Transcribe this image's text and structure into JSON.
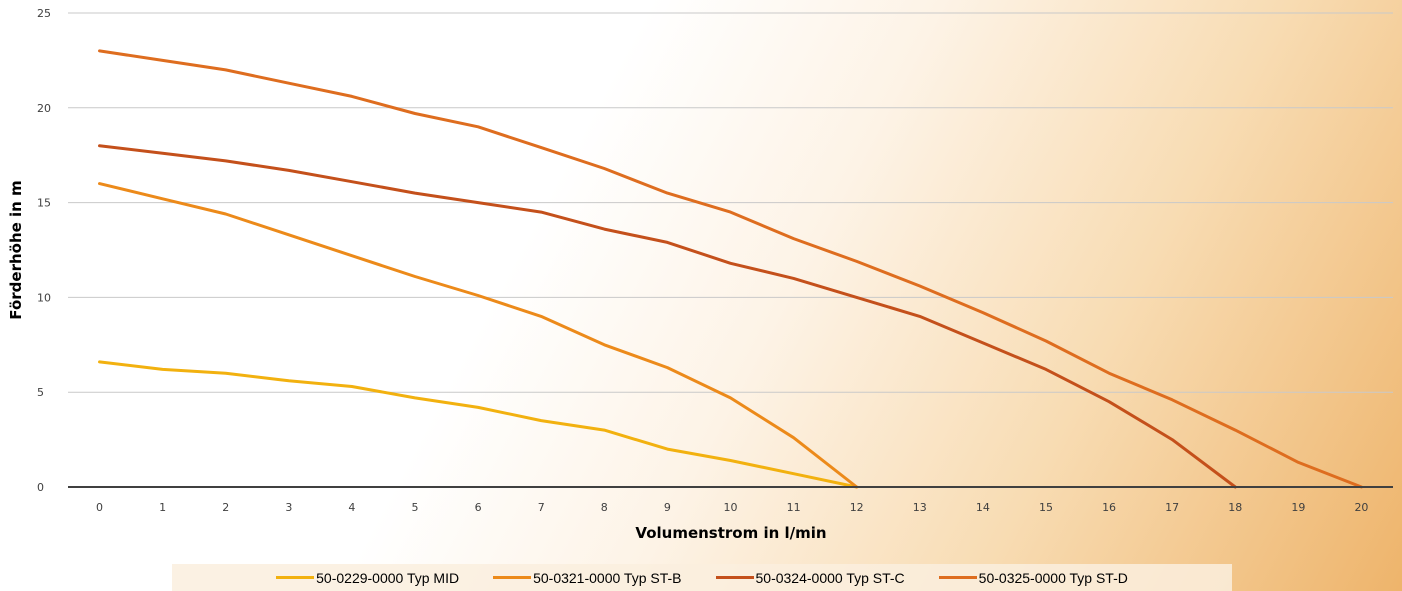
{
  "chart_data": {
    "type": "line",
    "xlabel": "Volumenstrom in l/min",
    "ylabel": "Förderhöhe in m",
    "x": [
      0,
      1,
      2,
      3,
      4,
      5,
      6,
      7,
      8,
      9,
      10,
      11,
      12,
      13,
      14,
      15,
      16,
      17,
      18,
      19,
      20
    ],
    "ylim": [
      0,
      25
    ],
    "yticks": [
      0,
      5,
      10,
      15,
      20,
      25
    ],
    "grid": "horizontal",
    "legend_position": "bottom",
    "series": [
      {
        "name": "50-0229-0000 Typ MID",
        "color": "#f2b10f",
        "values": [
          6.6,
          6.2,
          6.0,
          5.6,
          5.3,
          4.7,
          4.2,
          3.5,
          3.0,
          2.0,
          1.4,
          0.7,
          0.0,
          null,
          null,
          null,
          null,
          null,
          null,
          null,
          null
        ]
      },
      {
        "name": "50-0321-0000 Typ ST-B",
        "color": "#ec8a1a",
        "values": [
          16.0,
          15.2,
          14.4,
          13.3,
          12.2,
          11.1,
          10.1,
          9.0,
          7.5,
          6.3,
          4.7,
          2.6,
          0.0,
          null,
          null,
          null,
          null,
          null,
          null,
          null,
          null
        ]
      },
      {
        "name": "50-0324-0000 Typ ST-C",
        "color": "#c4501b",
        "values": [
          18.0,
          17.6,
          17.2,
          16.7,
          16.1,
          15.5,
          15.0,
          14.5,
          13.6,
          12.9,
          11.8,
          11.0,
          10.0,
          9.0,
          7.6,
          6.2,
          4.5,
          2.5,
          0.0,
          null,
          null
        ]
      },
      {
        "name": "50-0325-0000 Typ ST-D",
        "color": "#de6d1f",
        "values": [
          23.0,
          22.5,
          22.0,
          21.3,
          20.6,
          19.7,
          19.0,
          17.9,
          16.8,
          15.5,
          14.5,
          13.1,
          11.9,
          10.6,
          9.2,
          7.7,
          6.0,
          4.6,
          3.0,
          1.3,
          0.0
        ]
      }
    ]
  }
}
